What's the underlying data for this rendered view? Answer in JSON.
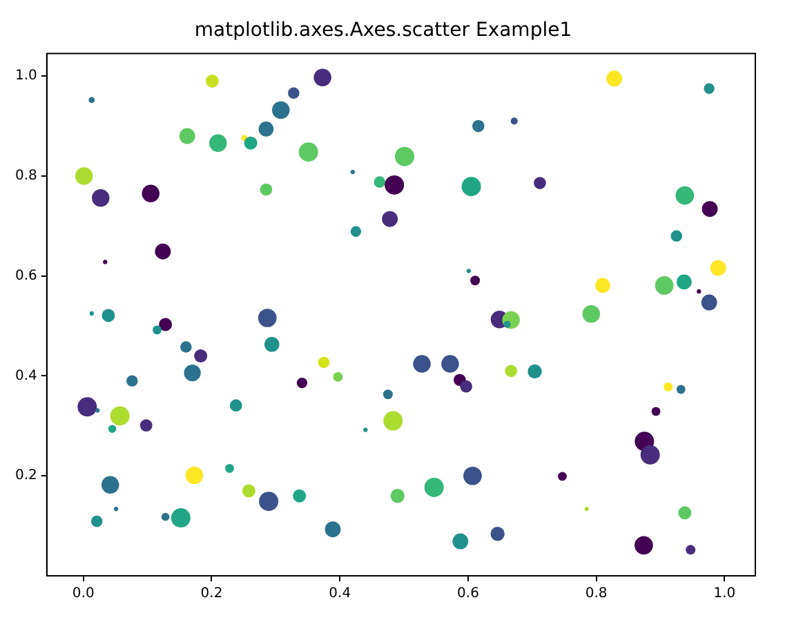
{
  "chart_data": {
    "type": "bubble",
    "title": "matplotlib.axes.Axes.scatter Example1",
    "x": [
      0.013,
      0.201,
      0.373,
      0.328,
      0.308,
      0.285,
      0.162,
      0.21,
      0.251,
      0.261,
      0.351,
      0.001,
      0.027,
      0.105,
      0.285,
      0.124,
      0.034,
      0.42,
      0.425,
      0.462,
      0.485,
      0.478,
      0.501,
      0.828,
      0.976,
      0.616,
      0.672,
      0.605,
      0.712,
      0.938,
      0.977,
      0.925,
      0.99,
      0.81,
      0.906,
      0.937,
      0.96,
      0.976,
      0.601,
      0.611,
      0.792,
      0.649,
      0.667,
      0.661,
      0.528,
      0.572,
      0.587,
      0.597,
      0.667,
      0.704,
      0.475,
      0.483,
      0.912,
      0.932,
      0.893,
      0.875,
      0.884,
      0.607,
      0.747,
      0.547,
      0.49,
      0.785,
      0.938,
      0.646,
      0.588,
      0.874,
      0.947,
      0.013,
      0.039,
      0.287,
      0.128,
      0.115,
      0.294,
      0.16,
      0.183,
      0.17,
      0.375,
      0.397,
      0.341,
      0.076,
      0.006,
      0.022,
      0.057,
      0.238,
      0.045,
      0.098,
      0.44,
      0.228,
      0.173,
      0.042,
      0.258,
      0.289,
      0.337,
      0.051,
      0.021,
      0.128,
      0.152,
      0.389
    ],
    "values": [
      0.952,
      0.99,
      0.997,
      0.966,
      0.932,
      0.894,
      0.88,
      0.866,
      0.876,
      0.866,
      0.848,
      0.8,
      0.756,
      0.765,
      0.773,
      0.649,
      0.628,
      0.808,
      0.689,
      0.788,
      0.782,
      0.714,
      0.839,
      0.995,
      0.975,
      0.9,
      0.91,
      0.779,
      0.786,
      0.761,
      0.734,
      0.68,
      0.616,
      0.581,
      0.581,
      0.588,
      0.569,
      0.547,
      0.61,
      0.591,
      0.524,
      0.513,
      0.512,
      0.503,
      0.424,
      0.424,
      0.392,
      0.379,
      0.41,
      0.409,
      0.363,
      0.31,
      0.378,
      0.373,
      0.329,
      0.269,
      0.242,
      0.2,
      0.199,
      0.177,
      0.16,
      0.134,
      0.126,
      0.084,
      0.069,
      0.061,
      0.052,
      0.525,
      0.521,
      0.516,
      0.503,
      0.492,
      0.463,
      0.458,
      0.44,
      0.406,
      0.427,
      0.398,
      0.386,
      0.39,
      0.338,
      0.331,
      0.32,
      0.341,
      0.294,
      0.301,
      0.292,
      0.215,
      0.201,
      0.182,
      0.17,
      0.149,
      0.16,
      0.134,
      0.109,
      0.118,
      0.116,
      0.093
    ],
    "sizes": [
      0.1,
      0.46,
      0.83,
      0.35,
      0.83,
      0.6,
      0.67,
      0.83,
      0.1,
      0.46,
      1,
      0.83,
      0.83,
      0.83,
      0.4,
      0.67,
      0.05,
      0.05,
      0.3,
      0.35,
      1,
      0.67,
      1,
      0.67,
      0.3,
      0.4,
      0.13,
      1,
      0.4,
      0.91,
      0.67,
      0.35,
      0.67,
      0.6,
      0.91,
      0.6,
      0.05,
      0.67,
      0.05,
      0.25,
      0.83,
      0.83,
      0.83,
      0.13,
      0.83,
      0.83,
      0.4,
      0.4,
      0.4,
      0.53,
      0.25,
      1,
      0.21,
      0.21,
      0.21,
      1,
      1,
      0.91,
      0.21,
      1,
      0.53,
      0.05,
      0.46,
      0.53,
      0.67,
      0.91,
      0.25,
      0.05,
      0.46,
      0.91,
      0.46,
      0.21,
      0.6,
      0.35,
      0.46,
      0.75,
      0.35,
      0.25,
      0.3,
      0.35,
      1,
      0.05,
      1,
      0.4,
      0.17,
      0.4,
      0.05,
      0.21,
      0.83,
      0.83,
      0.46,
      1,
      0.46,
      0.05,
      0.35,
      0.17,
      1,
      0.67
    ],
    "colors": [
      "#2c728e",
      "#c8e020",
      "#472d7b",
      "#3b528b",
      "#2c728e",
      "#2c728e",
      "#5ec962",
      "#35b779",
      "#fde725",
      "#21a685",
      "#5ec962",
      "#addc30",
      "#472d7b",
      "#440154",
      "#5ec962",
      "#440154",
      "#440154",
      "#2c728e",
      "#21918c",
      "#35b779",
      "#440154",
      "#472d7b",
      "#5ec962",
      "#fde725",
      "#21918c",
      "#2c728e",
      "#3b528b",
      "#21a685",
      "#472d7b",
      "#35b779",
      "#440154",
      "#21918c",
      "#fde725",
      "#fde725",
      "#5ec962",
      "#21a685",
      "#440154",
      "#3b528b",
      "#21918c",
      "#440154",
      "#5ec962",
      "#472d7b",
      "#7ad151",
      "#21918c",
      "#3b528b",
      "#3b528b",
      "#440154",
      "#472d7b",
      "#addc30",
      "#21918c",
      "#2c728e",
      "#addc30",
      "#fde725",
      "#2c728e",
      "#440154",
      "#440154",
      "#472d7b",
      "#3b528b",
      "#440154",
      "#35b779",
      "#5ec962",
      "#addc30",
      "#5ec962",
      "#3b528b",
      "#21918c",
      "#440154",
      "#472d7b",
      "#21918c",
      "#21918c",
      "#3b528b",
      "#440154",
      "#21918c",
      "#21918c",
      "#2c728e",
      "#472d7b",
      "#2c728e",
      "#d8e219",
      "#7ad151",
      "#440154",
      "#2c728e",
      "#472d7b",
      "#2c728e",
      "#addc30",
      "#21918c",
      "#21a685",
      "#472d7b",
      "#21918c",
      "#21a685",
      "#fde725",
      "#2c728e",
      "#addc30",
      "#3b528b",
      "#21a685",
      "#2c728e",
      "#21918c",
      "#2c728e",
      "#21a685",
      "#2c728e"
    ],
    "marker": "circle",
    "xlim": [
      -0.057,
      1.048
    ],
    "xticks": [
      {
        "value": 0,
        "label": "0.0"
      },
      0.2,
      0.4,
      0.6,
      0.8,
      {
        "value": 1,
        "label": "1.0"
      }
    ],
    "ylim": [
      0.0,
      1.045
    ],
    "yticks": [
      0.2,
      0.4,
      0.6,
      0.8,
      {
        "value": 1,
        "label": "1.0"
      }
    ]
  }
}
